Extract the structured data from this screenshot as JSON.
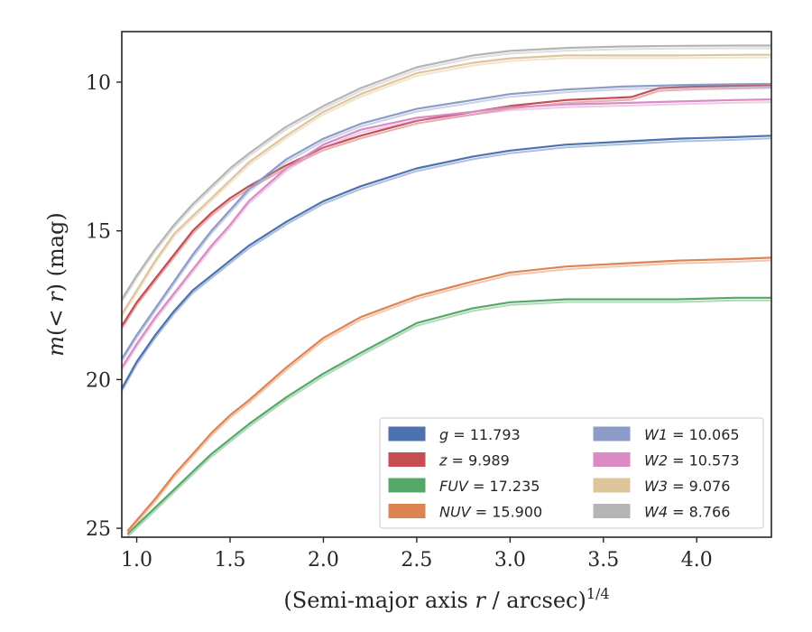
{
  "chart_data": {
    "type": "line",
    "xlabel": "(Semi-major axis r / arcsec)^1/4",
    "xlabel_parts": {
      "main": "(Semi-major axis ",
      "var": "r",
      "rest": " / arcsec)",
      "sup": "1/4"
    },
    "ylabel": "m(< r) (mag)",
    "ylabel_parts": {
      "var1": "m",
      "mid": "(< ",
      "var2": "r",
      "rest": ") (mag)"
    },
    "xlim": [
      0.92,
      4.4
    ],
    "ylim": [
      25.3,
      8.3
    ],
    "y_inverted": true,
    "x_ticks": [
      "1.0",
      "1.5",
      "2.0",
      "2.5",
      "3.0",
      "3.5",
      "4.0"
    ],
    "y_ticks": [
      "10",
      "15",
      "20",
      "25"
    ],
    "grid": false,
    "legend_position": "lower-right",
    "legend_columns": 2,
    "series": [
      {
        "name": "g = 11.793",
        "legend_var": "g",
        "legend_value": "11.793",
        "color": "#4c72b0",
        "x": [
          0.92,
          1.0,
          1.1,
          1.2,
          1.3,
          1.4,
          1.5,
          1.6,
          1.8,
          2.0,
          2.2,
          2.5,
          2.8,
          3.0,
          3.3,
          3.6,
          3.9,
          4.2,
          4.4
        ],
        "y": [
          20.3,
          19.4,
          18.5,
          17.7,
          17.0,
          16.5,
          16.0,
          15.5,
          14.7,
          14.0,
          13.5,
          12.9,
          12.5,
          12.3,
          12.1,
          12.0,
          11.9,
          11.85,
          11.8
        ]
      },
      {
        "name": "z = 9.989",
        "legend_var": "z",
        "legend_value": "9.989",
        "color": "#c44e52",
        "x": [
          0.92,
          1.0,
          1.1,
          1.2,
          1.3,
          1.4,
          1.5,
          1.6,
          1.8,
          2.0,
          2.2,
          2.5,
          2.8,
          3.0,
          3.3,
          3.65,
          3.8,
          4.0,
          4.4
        ],
        "y": [
          18.2,
          17.4,
          16.6,
          15.8,
          15.0,
          14.4,
          13.9,
          13.5,
          12.8,
          12.2,
          11.8,
          11.3,
          11.0,
          10.8,
          10.6,
          10.5,
          10.2,
          10.15,
          10.1
        ]
      },
      {
        "name": "FUV = 17.235",
        "legend_var": "FUV",
        "legend_value": "17.235",
        "color": "#55a868",
        "x": [
          0.95,
          1.1,
          1.2,
          1.3,
          1.4,
          1.5,
          1.6,
          1.8,
          2.0,
          2.2,
          2.5,
          2.8,
          3.0,
          3.3,
          3.6,
          3.9,
          4.2,
          4.4
        ],
        "y": [
          25.2,
          24.3,
          23.7,
          23.1,
          22.5,
          22.0,
          21.5,
          20.6,
          19.8,
          19.1,
          18.1,
          17.6,
          17.4,
          17.3,
          17.3,
          17.3,
          17.25,
          17.25
        ]
      },
      {
        "name": "NUV = 15.900",
        "legend_var": "NUV",
        "legend_value": "15.900",
        "color": "#dd8452",
        "x": [
          0.95,
          1.1,
          1.2,
          1.3,
          1.4,
          1.5,
          1.6,
          1.8,
          2.0,
          2.2,
          2.5,
          2.8,
          3.0,
          3.3,
          3.6,
          3.9,
          4.2,
          4.4
        ],
        "y": [
          25.1,
          24.0,
          23.2,
          22.5,
          21.8,
          21.2,
          20.7,
          19.6,
          18.6,
          17.9,
          17.2,
          16.7,
          16.4,
          16.2,
          16.1,
          16.0,
          15.95,
          15.9
        ]
      },
      {
        "name": "W1 = 10.065",
        "legend_var": "W1",
        "legend_value": "10.065",
        "color": "#8c9cc8",
        "x": [
          0.92,
          1.0,
          1.1,
          1.2,
          1.3,
          1.4,
          1.5,
          1.6,
          1.8,
          2.0,
          2.2,
          2.5,
          2.8,
          3.0,
          3.3,
          3.6,
          3.9,
          4.2,
          4.4
        ],
        "y": [
          19.3,
          18.5,
          17.6,
          16.7,
          15.8,
          15.0,
          14.3,
          13.6,
          12.6,
          11.9,
          11.4,
          10.9,
          10.6,
          10.4,
          10.25,
          10.15,
          10.1,
          10.07,
          10.06
        ]
      },
      {
        "name": "W2 = 10.573",
        "legend_var": "W2",
        "legend_value": "10.573",
        "color": "#da8bc3",
        "x": [
          0.92,
          1.0,
          1.1,
          1.2,
          1.3,
          1.4,
          1.5,
          1.6,
          1.8,
          2.0,
          2.2,
          2.5,
          2.8,
          3.0,
          3.3,
          3.6,
          3.9,
          4.2,
          4.4
        ],
        "y": [
          19.6,
          18.8,
          17.9,
          17.1,
          16.3,
          15.5,
          14.8,
          14.0,
          12.9,
          12.1,
          11.6,
          11.2,
          11.0,
          10.85,
          10.75,
          10.7,
          10.65,
          10.6,
          10.58
        ]
      },
      {
        "name": "W3 = 9.076",
        "legend_var": "W3",
        "legend_value": "9.076",
        "color": "#dfc59b",
        "x": [
          0.92,
          1.0,
          1.1,
          1.2,
          1.3,
          1.4,
          1.5,
          1.6,
          1.8,
          2.0,
          2.2,
          2.5,
          2.8,
          3.0,
          3.3,
          3.6,
          3.9,
          4.25,
          4.4
        ],
        "y": [
          17.8,
          17.0,
          16.0,
          15.1,
          14.5,
          13.9,
          13.3,
          12.7,
          11.8,
          11.0,
          10.4,
          9.7,
          9.35,
          9.2,
          9.1,
          9.1,
          9.1,
          9.08,
          9.08
        ]
      },
      {
        "name": "W4 = 8.766",
        "legend_var": "W4",
        "legend_value": "8.766",
        "color": "#b5b5b5",
        "x": [
          0.92,
          1.0,
          1.1,
          1.2,
          1.3,
          1.4,
          1.5,
          1.6,
          1.8,
          2.0,
          2.2,
          2.5,
          2.8,
          3.0,
          3.3,
          3.6,
          3.9,
          4.2,
          4.4
        ],
        "y": [
          17.3,
          16.5,
          15.6,
          14.8,
          14.1,
          13.5,
          12.9,
          12.4,
          11.5,
          10.8,
          10.2,
          9.5,
          9.1,
          8.95,
          8.85,
          8.8,
          8.78,
          8.77,
          8.77
        ]
      }
    ]
  }
}
